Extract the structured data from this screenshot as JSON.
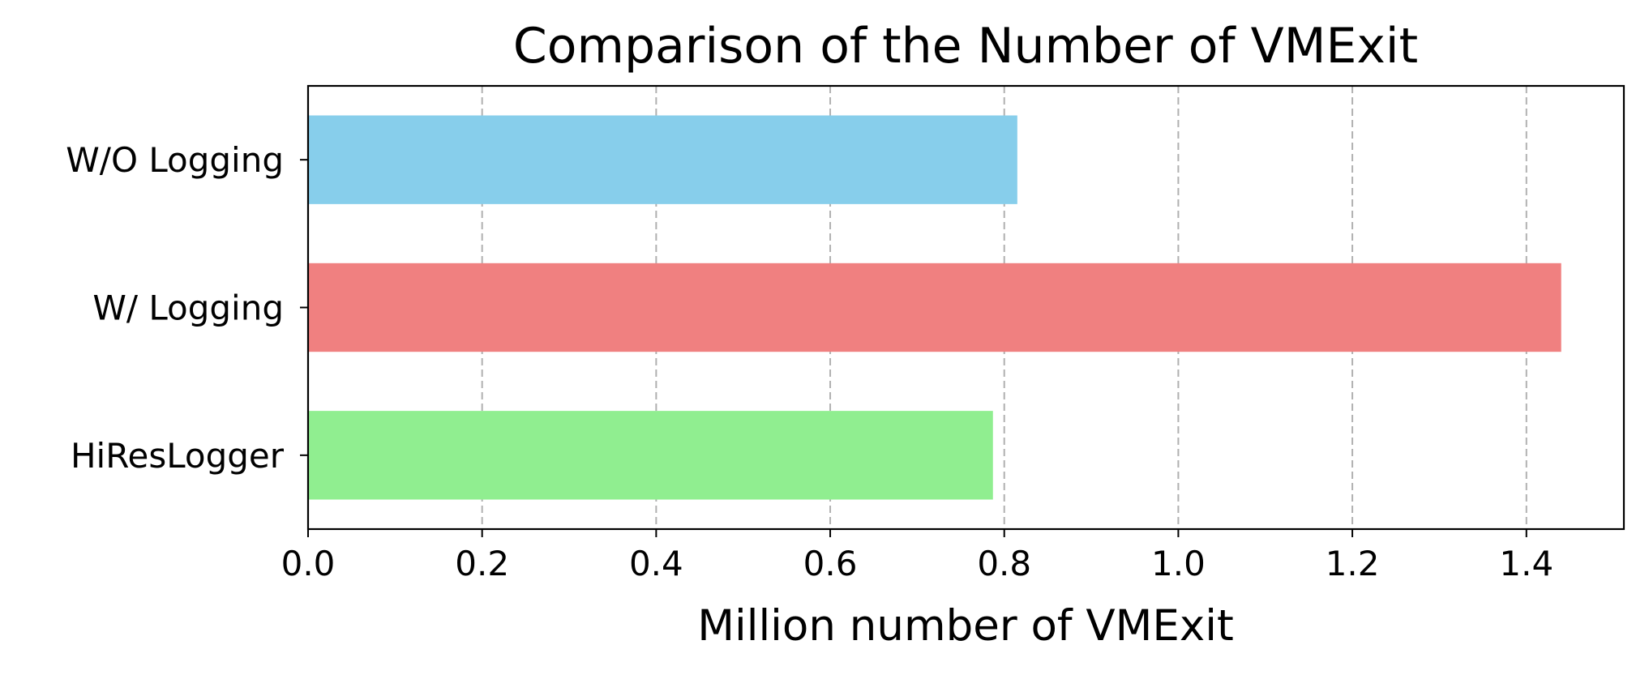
{
  "chart_data": {
    "type": "bar",
    "orientation": "horizontal",
    "title": "Comparison of the Number of VMExit",
    "xlabel": "Million number of VMExit",
    "ylabel": "",
    "categories": [
      "W/O Logging",
      "W/ Logging",
      "HiResLogger"
    ],
    "values": [
      0.815,
      1.44,
      0.787
    ],
    "colors": [
      "#87CEEB",
      "#F08080",
      "#90EE90"
    ],
    "xlim": [
      0.0,
      1.512
    ],
    "xticks": [
      0.0,
      0.2,
      0.4,
      0.6,
      0.8,
      1.0,
      1.2,
      1.4
    ],
    "xtick_labels": [
      "0.0",
      "0.2",
      "0.4",
      "0.6",
      "0.8",
      "1.0",
      "1.2",
      "1.4"
    ],
    "grid": "x-axis dashed",
    "grid_color": "#b0b0b0",
    "legend": "none"
  }
}
